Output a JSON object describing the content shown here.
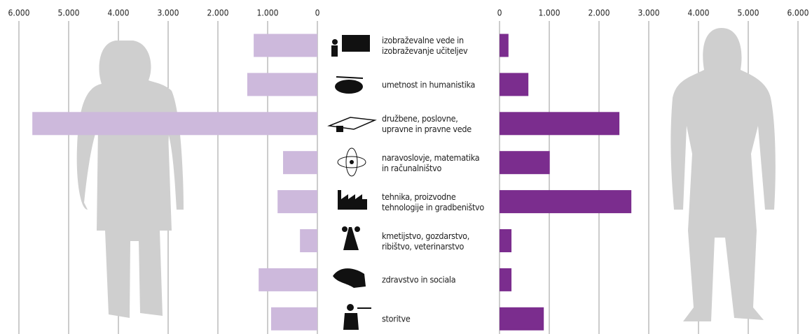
{
  "chart_data": {
    "type": "butterfly",
    "categories": [
      "izobraževalne vede in\nizobraževanje učiteljev",
      "umetnost in humanistika",
      "družbene, poslovne,\nupravne in pravne vede",
      "naravoslovje, matematika\nin računalništvo",
      "tehnika, proizvodne\ntehnologije in gradbeništvo",
      "kmetijstvo, gozdarstvo,\nribištvo, veterinarstvo",
      "zdravstvo in sociala",
      "storitve"
    ],
    "series": [
      {
        "side": "left",
        "color": "#cdb9dc",
        "values": [
          1280,
          1410,
          5730,
          690,
          800,
          350,
          1180,
          930
        ]
      },
      {
        "side": "right",
        "color": "#7b2d8e",
        "values": [
          180,
          580,
          2410,
          1010,
          2650,
          240,
          240,
          890
        ]
      }
    ],
    "xlim": [
      0,
      6000
    ],
    "xticks": [
      0,
      {
        "value": 1000,
        "label": "1.000"
      },
      {
        "value": 2000,
        "label": "2.000"
      },
      {
        "value": 3000,
        "label": "3.000"
      },
      {
        "value": 4000,
        "label": "4.000"
      },
      {
        "value": 5000,
        "label": "5.000"
      },
      {
        "value": 6000,
        "label": "6.000"
      }
    ],
    "grid": true
  }
}
